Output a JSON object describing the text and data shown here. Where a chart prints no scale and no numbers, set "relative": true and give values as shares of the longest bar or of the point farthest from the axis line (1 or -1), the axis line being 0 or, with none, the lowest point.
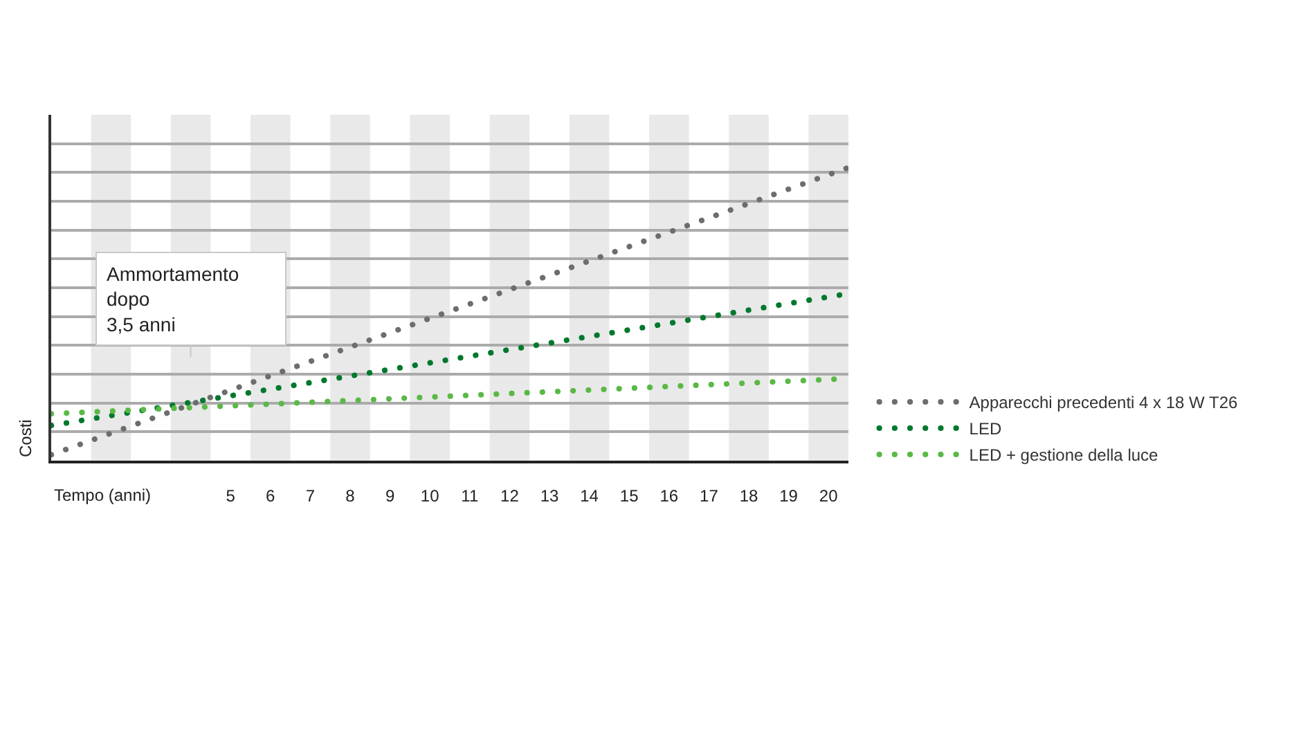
{
  "chart_data": {
    "type": "line",
    "relative": true,
    "xlabel": "Tempo (anni)",
    "ylabel": "Costi",
    "x": [
      0,
      20
    ],
    "xlim": [
      0,
      20
    ],
    "xticks": [
      {
        "value": 4.5,
        "label": "5"
      },
      {
        "value": 5.5,
        "label": "6"
      },
      {
        "value": 6.5,
        "label": "7"
      },
      {
        "value": 7.5,
        "label": "8"
      },
      {
        "value": 8.5,
        "label": "9"
      },
      {
        "value": 9.5,
        "label": "10"
      },
      {
        "value": 10.5,
        "label": "11"
      },
      {
        "value": 11.5,
        "label": "12"
      },
      {
        "value": 12.5,
        "label": "13"
      },
      {
        "value": 13.5,
        "label": "14"
      },
      {
        "value": 14.5,
        "label": "15"
      },
      {
        "value": 15.5,
        "label": "16"
      },
      {
        "value": 16.5,
        "label": "17"
      },
      {
        "value": 17.5,
        "label": "18"
      },
      {
        "value": 18.5,
        "label": "19"
      },
      {
        "value": 19.5,
        "label": "20"
      }
    ],
    "series": [
      {
        "name": "Apparecchi precedenti 4 x 18 W T26",
        "color": "#6d6d6d",
        "values": [
          0.02,
          1
        ]
      },
      {
        "name": "LED",
        "color": "#00782d",
        "values": [
          0.12,
          0.57
        ]
      },
      {
        "name": "LED + gestione della luce",
        "color": "#5ab946",
        "values": [
          0.16,
          0.28
        ]
      }
    ],
    "line_style": "dotted",
    "grid": "y",
    "legend": "bottom right",
    "bands": [
      {
        "axis": "x",
        "from": 1,
        "to": 2,
        "color": "#e9e9e9"
      },
      {
        "axis": "x",
        "from": 3,
        "to": 4,
        "color": "#e9e9e9"
      },
      {
        "axis": "x",
        "from": 5,
        "to": 6,
        "color": "#e9e9e9"
      },
      {
        "axis": "x",
        "from": 7,
        "to": 8,
        "color": "#e9e9e9"
      },
      {
        "axis": "x",
        "from": 9,
        "to": 10,
        "color": "#e9e9e9"
      },
      {
        "axis": "x",
        "from": 11,
        "to": 12,
        "color": "#e9e9e9"
      },
      {
        "axis": "x",
        "from": 13,
        "to": 14,
        "color": "#e9e9e9"
      },
      {
        "axis": "x",
        "from": 15,
        "to": 16,
        "color": "#e9e9e9"
      },
      {
        "axis": "x",
        "from": 17,
        "to": 18,
        "color": "#e9e9e9"
      },
      {
        "axis": "x",
        "from": 19,
        "to": 20,
        "color": "#e9e9e9"
      }
    ],
    "annotations": [
      "Ammortamento\ndopo\n3,5 anni"
    ]
  }
}
